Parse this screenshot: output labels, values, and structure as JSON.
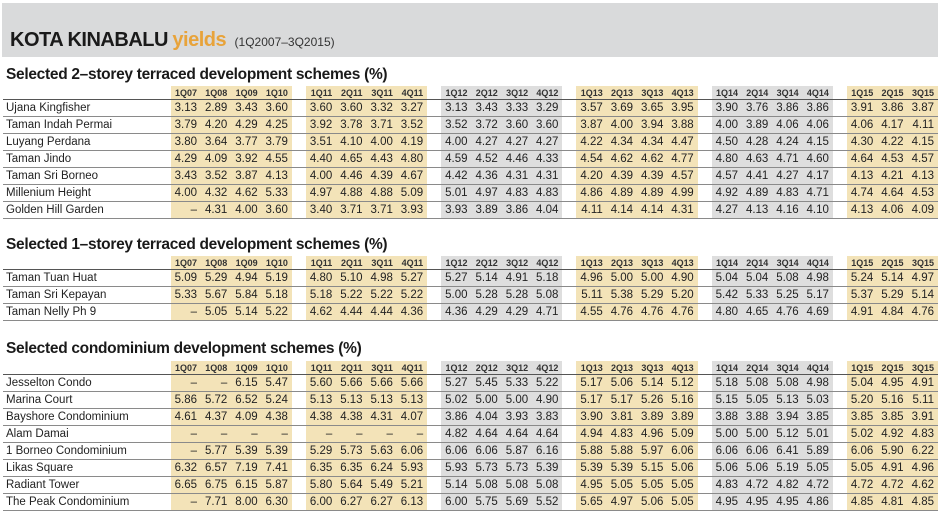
{
  "header": {
    "title_main": "KOTA KINABALU",
    "title_accent": "yields",
    "subtitle": "(1Q2007–3Q2015)"
  },
  "sections": [
    {
      "title": "Selected 2–storey terraced development schemes (%)",
      "columns": [
        "1Q07",
        "1Q08",
        "1Q09",
        "1Q10",
        "1Q11",
        "2Q11",
        "3Q11",
        "4Q11",
        "1Q12",
        "2Q12",
        "3Q12",
        "4Q12",
        "1Q13",
        "2Q13",
        "3Q13",
        "4Q13",
        "1Q14",
        "2Q14",
        "3Q14",
        "4Q14",
        "1Q15",
        "2Q15",
        "3Q15"
      ],
      "rows": [
        {
          "name": "Ujana Kingfisher",
          "values": [
            "3.13",
            "2.89",
            "3.43",
            "3.60",
            "3.60",
            "3.60",
            "3.32",
            "3.27",
            "3.13",
            "3.43",
            "3.33",
            "3.29",
            "3.57",
            "3.69",
            "3.65",
            "3.95",
            "3.90",
            "3.76",
            "3.86",
            "3.86",
            "3.91",
            "3.86",
            "3.87"
          ]
        },
        {
          "name": "Taman Indah Permai",
          "values": [
            "3.79",
            "4.20",
            "4.29",
            "4.25",
            "3.92",
            "3.78",
            "3.71",
            "3.52",
            "3.52",
            "3.72",
            "3.60",
            "3.60",
            "3.87",
            "4.00",
            "3.94",
            "3.88",
            "4.00",
            "3.89",
            "4.06",
            "4.06",
            "4.06",
            "4.17",
            "4.11"
          ]
        },
        {
          "name": "Luyang Perdana",
          "values": [
            "3.80",
            "3.64",
            "3.77",
            "3.79",
            "3.51",
            "4.10",
            "4.00",
            "4.19",
            "4.00",
            "4.27",
            "4.27",
            "4.27",
            "4.22",
            "4.34",
            "4.34",
            "4.47",
            "4.50",
            "4.28",
            "4.24",
            "4.15",
            "4.30",
            "4.22",
            "4.15"
          ]
        },
        {
          "name": "Taman Jindo",
          "values": [
            "4.29",
            "4.09",
            "3.92",
            "4.55",
            "4.40",
            "4.65",
            "4.43",
            "4.80",
            "4.59",
            "4.52",
            "4.46",
            "4.33",
            "4.54",
            "4.62",
            "4.62",
            "4.77",
            "4.80",
            "4.63",
            "4.71",
            "4.60",
            "4.64",
            "4.53",
            "4.57"
          ]
        },
        {
          "name": "Taman Sri Borneo",
          "values": [
            "3.43",
            "3.52",
            "3.87",
            "4.13",
            "4.00",
            "4.46",
            "4.39",
            "4.67",
            "4.42",
            "4.36",
            "4.31",
            "4.31",
            "4.20",
            "4.39",
            "4.39",
            "4.57",
            "4.57",
            "4.41",
            "4.27",
            "4.17",
            "4.13",
            "4.21",
            "4.13"
          ]
        },
        {
          "name": "Millenium Height",
          "values": [
            "4.00",
            "4.32",
            "4.62",
            "5.33",
            "4.97",
            "4.88",
            "4.88",
            "5.09",
            "5.01",
            "4.97",
            "4.83",
            "4.83",
            "4.86",
            "4.89",
            "4.89",
            "4.99",
            "4.92",
            "4.89",
            "4.83",
            "4.71",
            "4.74",
            "4.64",
            "4.53"
          ]
        },
        {
          "name": "Golden Hill Garden",
          "values": [
            "–",
            "4.31",
            "4.00",
            "3.60",
            "3.40",
            "3.71",
            "3.71",
            "3.93",
            "3.93",
            "3.89",
            "3.86",
            "4.04",
            "4.11",
            "4.14",
            "4.14",
            "4.31",
            "4.27",
            "4.13",
            "4.16",
            "4.10",
            "4.13",
            "4.06",
            "4.09"
          ]
        }
      ]
    },
    {
      "title": "Selected 1–storey terraced development schemes (%)",
      "columns": [
        "1Q07",
        "1Q08",
        "1Q09",
        "1Q10",
        "1Q11",
        "2Q11",
        "3Q11",
        "4Q11",
        "1Q12",
        "2Q12",
        "3Q12",
        "4Q12",
        "1Q13",
        "2Q13",
        "3Q13",
        "4Q13",
        "1Q14",
        "2Q14",
        "3Q14",
        "4Q14",
        "1Q15",
        "2Q15",
        "3Q15"
      ],
      "rows": [
        {
          "name": "Taman Tuan Huat",
          "values": [
            "5.09",
            "5.29",
            "4.94",
            "5.19",
            "4.80",
            "5.10",
            "4.98",
            "5.27",
            "5.27",
            "5.14",
            "4.91",
            "5.18",
            "4.96",
            "5.00",
            "5.00",
            "4.90",
            "5.04",
            "5.04",
            "5.08",
            "4.98",
            "5.24",
            "5.14",
            "4.97"
          ]
        },
        {
          "name": "Taman Sri Kepayan",
          "values": [
            "5.33",
            "5.67",
            "5.84",
            "5.18",
            "5.18",
            "5.22",
            "5.22",
            "5.22",
            "5.00",
            "5.28",
            "5.28",
            "5.08",
            "5.11",
            "5.38",
            "5.29",
            "5.20",
            "5.42",
            "5.33",
            "5.25",
            "5.17",
            "5.37",
            "5.29",
            "5.14"
          ]
        },
        {
          "name": "Taman Nelly Ph 9",
          "values": [
            "–",
            "5.05",
            "5.14",
            "5.22",
            "4.62",
            "4.44",
            "4.44",
            "4.36",
            "4.36",
            "4.29",
            "4.29",
            "4.71",
            "4.55",
            "4.76",
            "4.76",
            "4.76",
            "4.80",
            "4.65",
            "4.76",
            "4.69",
            "4.91",
            "4.84",
            "4.76"
          ]
        }
      ]
    },
    {
      "title": "Selected condominium development schemes (%)",
      "columns": [
        "1Q07",
        "1Q08",
        "1Q09",
        "1Q10",
        "1Q11",
        "2Q11",
        "3Q11",
        "4Q11",
        "1Q12",
        "2Q12",
        "3Q12",
        "4Q12",
        "1Q13",
        "2Q13",
        "3Q13",
        "4Q13",
        "1Q14",
        "2Q14",
        "3Q14",
        "4Q14",
        "1Q15",
        "2Q15",
        "3Q15"
      ],
      "rows": [
        {
          "name": "Jesselton Condo",
          "values": [
            "–",
            "–",
            "6.15",
            "5.47",
            "5.60",
            "5.66",
            "5.66",
            "5.66",
            "5.27",
            "5.45",
            "5.33",
            "5.22",
            "5.17",
            "5.06",
            "5.14",
            "5.12",
            "5.18",
            "5.08",
            "5.08",
            "4.98",
            "5.04",
            "4.95",
            "4.91"
          ]
        },
        {
          "name": "Marina Court",
          "values": [
            "5.86",
            "5.72",
            "6.52",
            "5.24",
            "5.13",
            "5.13",
            "5.13",
            "5.13",
            "5.02",
            "5.00",
            "5.00",
            "4.90",
            "5.17",
            "5.17",
            "5.26",
            "5.16",
            "5.15",
            "5.05",
            "5.13",
            "5.03",
            "5.20",
            "5.16",
            "5.11"
          ]
        },
        {
          "name": "Bayshore Condominium",
          "values": [
            "4.61",
            "4.37",
            "4.09",
            "4.38",
            "4.38",
            "4.38",
            "4.31",
            "4.07",
            "3.86",
            "4.04",
            "3.93",
            "3.83",
            "3.90",
            "3.81",
            "3.89",
            "3.89",
            "3.88",
            "3.88",
            "3.94",
            "3.85",
            "3.85",
            "3.85",
            "3.91"
          ]
        },
        {
          "name": "Alam Damai",
          "values": [
            "–",
            "–",
            "–",
            "–",
            "–",
            "–",
            "–",
            "–",
            "4.82",
            "4.64",
            "4.64",
            "4.64",
            "4.94",
            "4.83",
            "4.96",
            "5.09",
            "5.00",
            "5.00",
            "5.12",
            "5.01",
            "5.02",
            "4.92",
            "4.83"
          ]
        },
        {
          "name": "1 Borneo Condominium",
          "values": [
            "–",
            "5.77",
            "5.39",
            "5.39",
            "5.29",
            "5.73",
            "5.63",
            "6.06",
            "6.06",
            "6.06",
            "5.87",
            "6.16",
            "5.88",
            "5.88",
            "5.97",
            "6.06",
            "6.06",
            "6.06",
            "6.41",
            "5.89",
            "6.06",
            "5.90",
            "6.22"
          ]
        },
        {
          "name": "Likas Square",
          "values": [
            "6.32",
            "6.57",
            "7.19",
            "7.41",
            "6.35",
            "6.35",
            "6.24",
            "5.93",
            "5.93",
            "5.73",
            "5.73",
            "5.39",
            "5.39",
            "5.39",
            "5.15",
            "5.06",
            "5.06",
            "5.06",
            "5.19",
            "5.05",
            "5.05",
            "4.91",
            "4.96"
          ]
        },
        {
          "name": "Radiant Tower",
          "values": [
            "6.65",
            "6.75",
            "6.15",
            "5.87",
            "5.80",
            "5.64",
            "5.49",
            "5.21",
            "5.14",
            "5.08",
            "5.08",
            "5.08",
            "4.95",
            "5.05",
            "5.05",
            "5.05",
            "4.83",
            "4.72",
            "4.82",
            "4.72",
            "4.72",
            "4.72",
            "4.62"
          ]
        },
        {
          "name": "The Peak Condominium",
          "values": [
            "–",
            "7.71",
            "8.00",
            "6.30",
            "6.00",
            "6.27",
            "6.27",
            "6.13",
            "6.00",
            "5.75",
            "5.69",
            "5.52",
            "5.65",
            "4.97",
            "5.06",
            "5.05",
            "4.95",
            "4.95",
            "4.95",
            "4.86",
            "4.85",
            "4.81",
            "4.85"
          ]
        }
      ]
    }
  ]
}
